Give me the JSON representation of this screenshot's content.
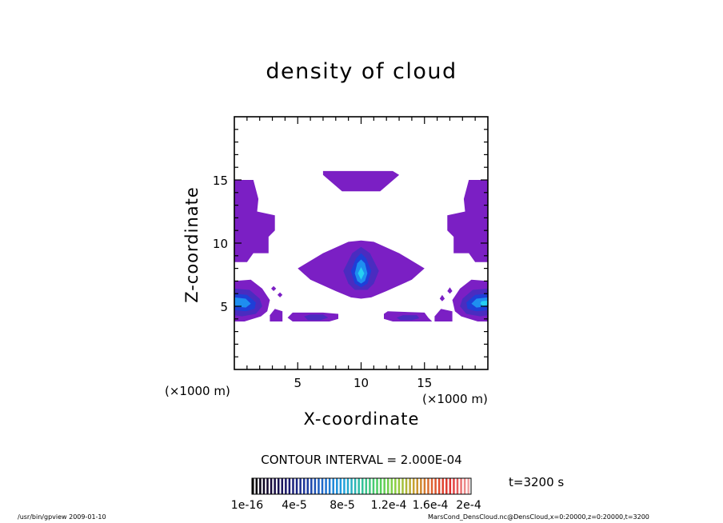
{
  "chart_data": {
    "type": "heatmap",
    "title": "density of cloud",
    "xlabel": "X-coordinate",
    "ylabel": "Z-coordinate",
    "x_unit_label": "(×1000 m)",
    "y_unit_label": "(×1000 m)",
    "xlim": [
      0,
      20
    ],
    "ylim": [
      0,
      20
    ],
    "x_ticks": [
      "5",
      "10",
      "15"
    ],
    "y_ticks": [
      "5",
      "10",
      "15"
    ],
    "x_tick_values": [
      5,
      10,
      15
    ],
    "y_tick_values": [
      5,
      10,
      15
    ],
    "contour_interval": "CONTOUR INTERVAL = 2.000E-04",
    "colorbar_labels": [
      "1e-16",
      "4e-5",
      "8e-5",
      "1.2e-4",
      "1.6e-4",
      "2e-4"
    ],
    "time_label": "t=3200 s",
    "colors": {
      "level1": "#7b1fc4",
      "level2": "#4a2cc0",
      "level3": "#1e3fd8",
      "level4": "#1e8ef0",
      "level5": "#26d0f2"
    },
    "regions": [
      {
        "name": "cloud-top-bar",
        "level": 1,
        "polygon": [
          [
            7,
            15.7
          ],
          [
            12.5,
            15.7
          ],
          [
            13,
            15.4
          ],
          [
            11.5,
            14.1
          ],
          [
            8.5,
            14.1
          ],
          [
            7,
            15.4
          ]
        ]
      },
      {
        "name": "cloud-left-upper",
        "level": 1,
        "polygon": [
          [
            0,
            15
          ],
          [
            1.5,
            15
          ],
          [
            1.9,
            13.5
          ],
          [
            1.8,
            12.5
          ],
          [
            3.2,
            12.2
          ],
          [
            3.2,
            11
          ],
          [
            2.7,
            10.5
          ],
          [
            2.7,
            9.2
          ],
          [
            1.5,
            9.2
          ],
          [
            1,
            8.5
          ],
          [
            0,
            8.5
          ]
        ]
      },
      {
        "name": "cloud-right-upper",
        "level": 1,
        "polygon": [
          [
            20,
            15
          ],
          [
            18.5,
            15
          ],
          [
            18.1,
            13.5
          ],
          [
            18.2,
            12.5
          ],
          [
            16.8,
            12.2
          ],
          [
            16.8,
            11
          ],
          [
            17.3,
            10.5
          ],
          [
            17.3,
            9.2
          ],
          [
            18.5,
            9.2
          ],
          [
            19,
            8.5
          ],
          [
            20,
            8.5
          ]
        ]
      },
      {
        "name": "cloud-center-wing",
        "level": 1,
        "polygon": [
          [
            5,
            8
          ],
          [
            7,
            9.2
          ],
          [
            9,
            10.1
          ],
          [
            10,
            10.2
          ],
          [
            11,
            10.1
          ],
          [
            13,
            9.2
          ],
          [
            15,
            8
          ],
          [
            14,
            7.1
          ],
          [
            12,
            6.2
          ],
          [
            10.8,
            5.7
          ],
          [
            10,
            5.6
          ],
          [
            9.2,
            5.7
          ],
          [
            8,
            6.2
          ],
          [
            6,
            7.1
          ]
        ]
      },
      {
        "name": "cloud-center-core-2",
        "level": 2,
        "polygon": [
          [
            8.6,
            7.8
          ],
          [
            9.3,
            9.2
          ],
          [
            10,
            9.7
          ],
          [
            10.7,
            9.2
          ],
          [
            11.4,
            7.8
          ],
          [
            11,
            6.8
          ],
          [
            10.5,
            6.3
          ],
          [
            9.5,
            6.3
          ],
          [
            9,
            6.8
          ]
        ]
      },
      {
        "name": "cloud-center-core-3",
        "level": 3,
        "polygon": [
          [
            9.2,
            7.8
          ],
          [
            9.6,
            8.8
          ],
          [
            10,
            9.2
          ],
          [
            10.4,
            8.8
          ],
          [
            10.8,
            7.8
          ],
          [
            10.5,
            6.8
          ],
          [
            10,
            6.5
          ],
          [
            9.5,
            6.8
          ]
        ]
      },
      {
        "name": "cloud-center-core-4",
        "level": 4,
        "polygon": [
          [
            9.5,
            7.6
          ],
          [
            9.7,
            8.4
          ],
          [
            10,
            8.7
          ],
          [
            10.3,
            8.4
          ],
          [
            10.5,
            7.6
          ],
          [
            10.3,
            7
          ],
          [
            10,
            6.8
          ],
          [
            9.7,
            7
          ]
        ]
      },
      {
        "name": "cloud-center-core-5",
        "level": 5,
        "polygon": [
          [
            9.75,
            7.6
          ],
          [
            10,
            8.1
          ],
          [
            10.25,
            7.6
          ],
          [
            10,
            7.1
          ]
        ]
      },
      {
        "name": "cloud-left-lower",
        "level": 1,
        "polygon": [
          [
            0,
            7
          ],
          [
            1.3,
            7.1
          ],
          [
            2.2,
            6.4
          ],
          [
            2.8,
            5.5
          ],
          [
            2.6,
            4.6
          ],
          [
            2.1,
            4.2
          ],
          [
            0.8,
            3.8
          ],
          [
            0,
            3.8
          ]
        ]
      },
      {
        "name": "cloud-left-lower-2",
        "level": 2,
        "polygon": [
          [
            0,
            6.4
          ],
          [
            1.2,
            6.3
          ],
          [
            2,
            5.6
          ],
          [
            2.2,
            5
          ],
          [
            1.7,
            4.4
          ],
          [
            0.6,
            4.2
          ],
          [
            0,
            4.3
          ]
        ]
      },
      {
        "name": "cloud-left-lower-3",
        "level": 3,
        "polygon": [
          [
            0,
            6
          ],
          [
            1,
            5.9
          ],
          [
            1.7,
            5.3
          ],
          [
            1.6,
            4.8
          ],
          [
            0.9,
            4.6
          ],
          [
            0,
            4.7
          ]
        ]
      },
      {
        "name": "cloud-left-lower-4",
        "level": 4,
        "polygon": [
          [
            0,
            5.7
          ],
          [
            0.9,
            5.6
          ],
          [
            1.3,
            5.2
          ],
          [
            0.9,
            4.9
          ],
          [
            0,
            5
          ]
        ]
      },
      {
        "name": "cloud-left-bottom-bar",
        "level": 1,
        "polygon": [
          [
            4.2,
            4.1
          ],
          [
            4.6,
            4.5
          ],
          [
            7,
            4.5
          ],
          [
            8.2,
            4.4
          ],
          [
            8.2,
            4
          ],
          [
            7.5,
            3.8
          ],
          [
            4.6,
            3.8
          ]
        ]
      },
      {
        "name": "cloud-left-bottom-bar-2",
        "level": 2,
        "polygon": [
          [
            5.5,
            4.2
          ],
          [
            6,
            4.35
          ],
          [
            7,
            4.35
          ],
          [
            7.4,
            4.1
          ],
          [
            6.8,
            3.9
          ],
          [
            5.8,
            3.9
          ]
        ]
      },
      {
        "name": "cloud-left-small-a",
        "level": 1,
        "polygon": [
          [
            2.8,
            4.3
          ],
          [
            3.2,
            4.8
          ],
          [
            3.8,
            4.6
          ],
          [
            3.8,
            3.8
          ],
          [
            2.8,
            3.8
          ]
        ]
      },
      {
        "name": "cloud-left-dot-a",
        "level": 1,
        "polygon": [
          [
            3.4,
            5.9
          ],
          [
            3.6,
            6.1
          ],
          [
            3.8,
            5.9
          ],
          [
            3.6,
            5.7
          ]
        ]
      },
      {
        "name": "cloud-left-dot-b",
        "level": 1,
        "polygon": [
          [
            2.9,
            6.4
          ],
          [
            3.1,
            6.6
          ],
          [
            3.3,
            6.4
          ],
          [
            3.1,
            6.2
          ]
        ]
      },
      {
        "name": "cloud-right-lower",
        "level": 1,
        "polygon": [
          [
            20,
            7
          ],
          [
            18.7,
            7.1
          ],
          [
            17.8,
            6.4
          ],
          [
            17.2,
            5.5
          ],
          [
            17.4,
            4.6
          ],
          [
            17.9,
            4.2
          ],
          [
            19.2,
            3.8
          ],
          [
            20,
            3.8
          ]
        ]
      },
      {
        "name": "cloud-right-lower-2",
        "level": 2,
        "polygon": [
          [
            20,
            6.4
          ],
          [
            18.8,
            6.3
          ],
          [
            18,
            5.6
          ],
          [
            17.8,
            5
          ],
          [
            18.3,
            4.4
          ],
          [
            19.4,
            4.2
          ],
          [
            20,
            4.3
          ]
        ]
      },
      {
        "name": "cloud-right-lower-3",
        "level": 3,
        "polygon": [
          [
            20,
            6
          ],
          [
            19,
            5.9
          ],
          [
            18.3,
            5.3
          ],
          [
            18.4,
            4.8
          ],
          [
            19.1,
            4.6
          ],
          [
            20,
            4.7
          ]
        ]
      },
      {
        "name": "cloud-right-lower-4",
        "level": 4,
        "polygon": [
          [
            20,
            5.7
          ],
          [
            19.1,
            5.6
          ],
          [
            18.7,
            5.2
          ],
          [
            19.1,
            4.9
          ],
          [
            20,
            5
          ]
        ]
      },
      {
        "name": "cloud-right-lower-5",
        "level": 5,
        "polygon": [
          [
            20,
            5.45
          ],
          [
            19.5,
            5.4
          ],
          [
            19.4,
            5.2
          ],
          [
            19.6,
            5.05
          ],
          [
            20,
            5.1
          ]
        ]
      },
      {
        "name": "cloud-right-bottom-bar",
        "level": 1,
        "polygon": [
          [
            11.8,
            4.4
          ],
          [
            12.1,
            4.6
          ],
          [
            15,
            4.5
          ],
          [
            15.3,
            4.1
          ],
          [
            15.6,
            3.8
          ],
          [
            12.5,
            3.8
          ],
          [
            11.8,
            4
          ]
        ]
      },
      {
        "name": "cloud-right-bottom-bar-2",
        "level": 2,
        "polygon": [
          [
            12.8,
            4.1
          ],
          [
            13.3,
            4.3
          ],
          [
            14.4,
            4.3
          ],
          [
            14.6,
            4.05
          ],
          [
            14,
            3.9
          ],
          [
            13.1,
            3.9
          ]
        ]
      },
      {
        "name": "cloud-right-small-a",
        "level": 1,
        "polygon": [
          [
            15.8,
            4.2
          ],
          [
            16.3,
            4.8
          ],
          [
            17.2,
            4.6
          ],
          [
            17.2,
            3.8
          ],
          [
            15.8,
            3.8
          ]
        ]
      },
      {
        "name": "cloud-right-dot-a",
        "level": 1,
        "polygon": [
          [
            16.2,
            5.6
          ],
          [
            16.4,
            5.9
          ],
          [
            16.6,
            5.6
          ],
          [
            16.4,
            5.4
          ]
        ]
      },
      {
        "name": "cloud-right-dot-b",
        "level": 1,
        "polygon": [
          [
            16.8,
            6.2
          ],
          [
            17,
            6.5
          ],
          [
            17.2,
            6.2
          ],
          [
            17,
            6
          ]
        ]
      }
    ]
  },
  "footer": {
    "left": "/usr/bin/gpview   2009-01-10",
    "right": "MarsCond_DensCloud.nc@DensCloud,x=0:20000,z=0:20000,t=3200"
  }
}
